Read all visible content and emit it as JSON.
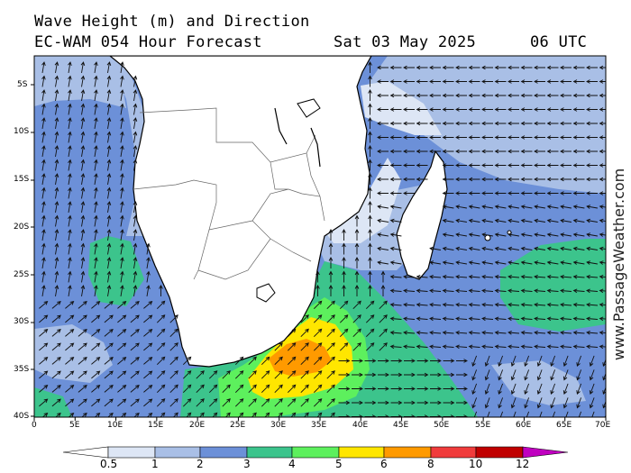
{
  "header": {
    "title": "Wave Height (m) and Direction",
    "model_line": "EC-WAM 054 Hour Forecast",
    "date": "Sat 03 May 2025",
    "time": "06 UTC"
  },
  "watermark": "www.PassageWeather.com",
  "axes": {
    "lat_labels": [
      "5S",
      "10S",
      "15S",
      "20S",
      "25S",
      "30S",
      "35S",
      "40S"
    ],
    "lon_labels": [
      "0",
      "5E",
      "10E",
      "15E",
      "20E",
      "25E",
      "30E",
      "35E",
      "40E",
      "45E",
      "50E",
      "55E",
      "60E",
      "65E",
      "70E"
    ]
  },
  "legend": {
    "labels": [
      "0.5",
      "1",
      "2",
      "3",
      "4",
      "5",
      "6",
      "8",
      "10",
      "12"
    ],
    "colors": [
      "#ffffff",
      "#dde6f5",
      "#a9bfe6",
      "#6c90d8",
      "#3cc48c",
      "#5df05d",
      "#ffe600",
      "#ff9a00",
      "#f03c3c",
      "#c00000",
      "#c000c0"
    ]
  },
  "colors": {
    "land": "#ffffff",
    "sea_lt1": "#dde6f5",
    "sea_1_2": "#a9bfe6",
    "sea_2_3": "#6c90d8",
    "sea_3_4": "#3cc48c",
    "sea_4_5": "#5df05d",
    "sea_5_6": "#ffe600",
    "sea_6_8": "#ff9a00"
  }
}
